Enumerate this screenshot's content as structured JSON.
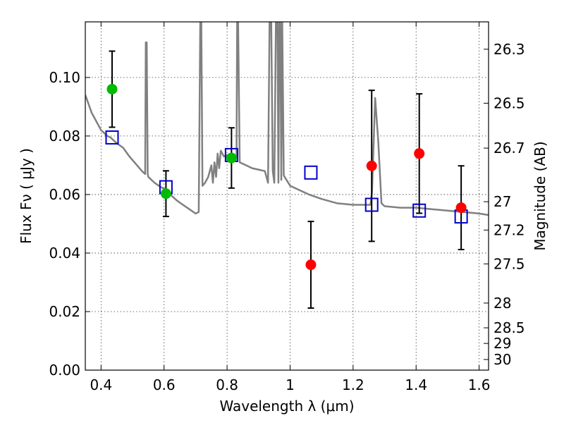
{
  "chart_data": {
    "type": "scatter",
    "xlabel": "Wavelength  λ (μm)",
    "ylabel": "Flux  Fν  ( μJy )",
    "ylabel_right": "Magnitude (AB)",
    "xlim": [
      0.35,
      1.63
    ],
    "ylim": [
      0.0,
      0.119
    ],
    "grid": true,
    "x_ticks": [
      0.4,
      0.6,
      0.8,
      1.0,
      1.2,
      1.4,
      1.6
    ],
    "x_tick_labels": [
      "0.4",
      "0.6",
      "0.8",
      "1",
      "1.2",
      "1.4",
      "1.6"
    ],
    "y_ticks": [
      0.0,
      0.02,
      0.04,
      0.06,
      0.08,
      0.1
    ],
    "y_tick_labels": [
      "0.00",
      "0.02",
      "0.04",
      "0.06",
      "0.08",
      "0.10"
    ],
    "mag_ticks": [
      26.3,
      26.5,
      26.7,
      27,
      27.2,
      27.5,
      28,
      28.5,
      29,
      30
    ],
    "mag_tick_labels": [
      "26.3",
      "26.5",
      "26.7",
      "27",
      "27.2",
      "27.5",
      "28",
      "28.5",
      "29",
      "30"
    ],
    "series": [
      {
        "name": "green observed",
        "marker": "circle",
        "color": "#00bb00",
        "x": [
          0.435,
          0.606,
          0.814
        ],
        "y": [
          0.096,
          0.0603,
          0.0725
        ],
        "yerr": [
          0.013,
          0.0078,
          0.0103
        ]
      },
      {
        "name": "red observed",
        "marker": "circle",
        "color": "#ff0000",
        "x": [
          1.066,
          1.259,
          1.41,
          1.543
        ],
        "y": [
          0.036,
          0.0698,
          0.074,
          0.0555
        ],
        "yerr": [
          0.0148,
          0.0258,
          0.0204,
          0.0143
        ]
      },
      {
        "name": "model photometry",
        "marker": "square",
        "color": "#0000cc",
        "x": [
          0.435,
          0.606,
          0.814,
          1.066,
          1.259,
          1.41,
          1.543
        ],
        "y": [
          0.0795,
          0.0625,
          0.0735,
          0.0675,
          0.0565,
          0.0545,
          0.0525
        ]
      },
      {
        "name": "model spectrum",
        "type": "line",
        "color": "#808080",
        "x": [
          0.35,
          0.36,
          0.37,
          0.38,
          0.39,
          0.4,
          0.41,
          0.42,
          0.43,
          0.44,
          0.45,
          0.47,
          0.49,
          0.51,
          0.53,
          0.54,
          0.542,
          0.545,
          0.548,
          0.55,
          0.57,
          0.59,
          0.6,
          0.62,
          0.64,
          0.66,
          0.68,
          0.7,
          0.71,
          0.715,
          0.718,
          0.722,
          0.73,
          0.74,
          0.75,
          0.755,
          0.76,
          0.765,
          0.77,
          0.775,
          0.78,
          0.79,
          0.8,
          0.81,
          0.82,
          0.83,
          0.832,
          0.835,
          0.84,
          0.86,
          0.88,
          0.9,
          0.92,
          0.93,
          0.935,
          0.94,
          0.945,
          0.95,
          0.955,
          0.96,
          0.963,
          0.966,
          0.969,
          0.972,
          0.975,
          0.98,
          1.0,
          1.03,
          1.06,
          1.1,
          1.15,
          1.2,
          1.24,
          1.255,
          1.26,
          1.27,
          1.28,
          1.29,
          1.3,
          1.35,
          1.4,
          1.45,
          1.5,
          1.55,
          1.6,
          1.63
        ],
        "y": [
          0.094,
          0.091,
          0.088,
          0.086,
          0.084,
          0.082,
          0.081,
          0.08,
          0.0795,
          0.0785,
          0.0775,
          0.076,
          0.073,
          0.0705,
          0.068,
          0.067,
          0.112,
          0.112,
          0.067,
          0.066,
          0.064,
          0.0625,
          0.062,
          0.06,
          0.058,
          0.0565,
          0.055,
          0.0535,
          0.054,
          0.12,
          0.12,
          0.063,
          0.064,
          0.066,
          0.07,
          0.064,
          0.071,
          0.066,
          0.074,
          0.069,
          0.075,
          0.073,
          0.0735,
          0.072,
          0.072,
          0.073,
          0.12,
          0.12,
          0.071,
          0.07,
          0.069,
          0.0685,
          0.068,
          0.064,
          0.12,
          0.12,
          0.068,
          0.064,
          0.12,
          0.12,
          0.064,
          0.12,
          0.12,
          0.065,
          0.12,
          0.0665,
          0.063,
          0.0615,
          0.06,
          0.0585,
          0.057,
          0.0565,
          0.0565,
          0.0565,
          0.061,
          0.093,
          0.078,
          0.057,
          0.056,
          0.0555,
          0.0555,
          0.055,
          0.0545,
          0.054,
          0.0535,
          0.053
        ]
      }
    ]
  }
}
